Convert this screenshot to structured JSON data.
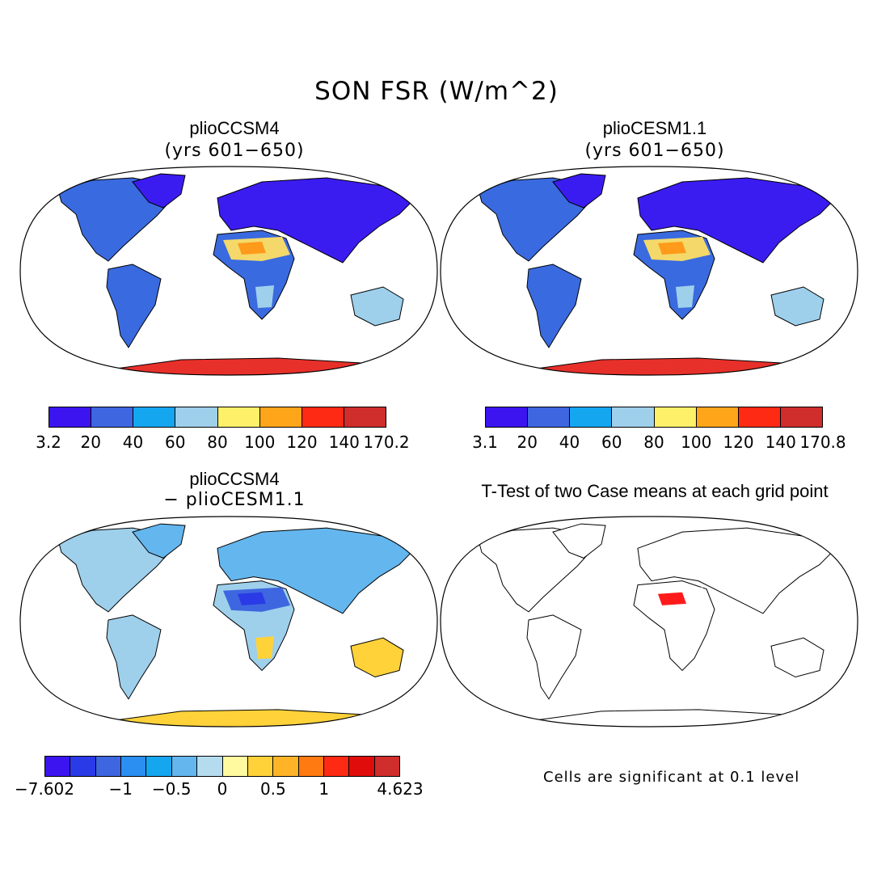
{
  "figure": {
    "title": "SON FSR (W/m^2)",
    "panels": [
      {
        "title": "plioCCSM4",
        "subtitle": "(yrs 601−650)",
        "colorbar": {
          "colors": [
            "#3b14f0",
            "#3e66e0",
            "#15a6f0",
            "#9ed0ec",
            "#fff06a",
            "#ffa51a",
            "#ff2a14",
            "#d02d2d"
          ],
          "labels": [
            "3.2",
            "20",
            "40",
            "60",
            "80",
            "100",
            "120",
            "140",
            "170.2"
          ]
        },
        "fills": {
          "land": "#3a6adf",
          "north": "#3b1cf0",
          "desert": "#f4d96a",
          "desert_core": "#ff9a1a",
          "arid": "#9ed0ec",
          "antarctica": "#e8302a"
        }
      },
      {
        "title": "plioCESM1.1",
        "subtitle": "(yrs 601−650)",
        "colorbar": {
          "colors": [
            "#3b14f0",
            "#3e66e0",
            "#15a6f0",
            "#9ed0ec",
            "#fff06a",
            "#ffa51a",
            "#ff2a14",
            "#d02d2d"
          ],
          "labels": [
            "3.1",
            "20",
            "40",
            "60",
            "80",
            "100",
            "120",
            "140",
            "170.8"
          ]
        },
        "fills": {
          "land": "#3a6adf",
          "north": "#3b1cf0",
          "desert": "#f4d96a",
          "desert_core": "#ff9a1a",
          "arid": "#9ed0ec",
          "antarctica": "#e8302a"
        }
      },
      {
        "title": "plioCCSM4",
        "subtitle": "− plioCESM1.1",
        "colorbar": {
          "colors": [
            "#3b14f0",
            "#2a3ae6",
            "#3e66e0",
            "#2a8ff0",
            "#15a6f0",
            "#64b6ee",
            "#b4dcee",
            "#fffaa0",
            "#ffd23a",
            "#ffb428",
            "#ff7a10",
            "#ff2a14",
            "#e00c0c",
            "#d02d2d"
          ],
          "labels": [
            "−7.602",
            "−1",
            "−0.5",
            "0",
            "0.5",
            "1",
            "4.623"
          ]
        },
        "fills": {
          "land": "#9ed0ec",
          "north": "#64b6ee",
          "desert": "#3e66e0",
          "desert_core": "#2a3ae6",
          "arid": "#ffd23a",
          "antarctica": "#ffd23a"
        }
      },
      {
        "title": "T-Test of two Case means at each grid point",
        "note": "Cells are significant at 0.1 level",
        "fills": {
          "land": "#ffffff",
          "north": "#ffffff",
          "desert": "#ffffff",
          "desert_core": "#ff1a1a",
          "arid": "#ffffff",
          "antarctica": "#ffffff"
        }
      }
    ]
  }
}
